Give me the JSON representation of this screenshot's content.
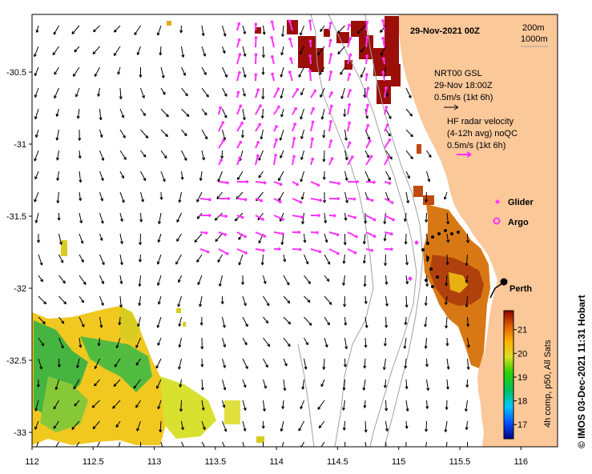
{
  "title": "29-Nov-2021 00Z",
  "depth_contours": [
    "200m",
    "1000m"
  ],
  "legend": {
    "nrt_line1": "NRT00 GSL",
    "nrt_line2": "29-Nov 18:00Z",
    "nrt_line3": "0.5m/s (1kt 6h)",
    "hf_line1": "HF radar velocity",
    "hf_line2": "(4-12h avg) noQC",
    "hf_line3": "0.5m/s (1kt 6h)",
    "glider": "Glider",
    "argo": "Argo"
  },
  "city": "Perth",
  "colorbar": {
    "label": "4h comp, p50, All Sats",
    "ticks": [
      "17",
      "18",
      "19",
      "20",
      "21"
    ],
    "range": [
      16.4,
      21.8
    ]
  },
  "axes": {
    "x_ticks": [
      "112",
      "112.5",
      "113",
      "113.5",
      "114",
      "114.5",
      "115",
      "115.5",
      "116"
    ],
    "y_ticks": [
      "-30.5",
      "-31",
      "-31.5",
      "-32",
      "-32.5",
      "-33"
    ],
    "xlim": [
      112,
      116.3
    ],
    "ylim": [
      -33.1,
      -30.1
    ]
  },
  "credit": "© IMOS 03-Dec-2021 11:31 Hobart",
  "colors": {
    "land": "#fbc89a",
    "current_vector": "#000000",
    "radar_vector": "#ff33ff",
    "contour": "#a0a0a0"
  }
}
